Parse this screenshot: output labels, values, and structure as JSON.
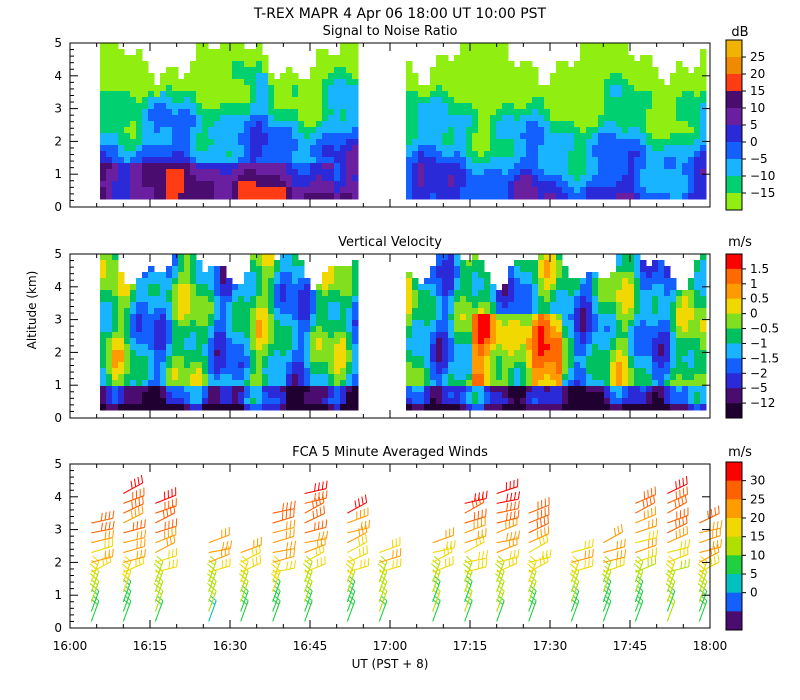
{
  "page_title": "T-REX  MAPR  4 Apr 06  18:00 UT  10:00  PST",
  "x_axis": {
    "ticks": [
      "16:00",
      "16:15",
      "16:30",
      "16:45",
      "17:00",
      "17:15",
      "17:30",
      "17:45",
      "18:00"
    ],
    "range_minutes": [
      0,
      120
    ],
    "label": "UT  (PST + 8)"
  },
  "chart_data": [
    {
      "type": "heatmap",
      "title": "Signal to Noise Ratio",
      "ylabel": "",
      "ylim": [
        0,
        5
      ],
      "yticks": [
        "0",
        "1",
        "2",
        "3",
        "4",
        "5"
      ],
      "xlim": [
        0,
        120
      ],
      "data_gap_minutes": [
        55,
        62
      ],
      "colorbar": {
        "unit": "dB",
        "labels": [
          "25",
          "20",
          "15",
          "10",
          "5",
          "0",
          "−5",
          "−10",
          "−15"
        ],
        "colors": [
          "#f0b400",
          "#f08a00",
          "#ff3c14",
          "#4a0c6e",
          "#6a1fa0",
          "#2a2ad8",
          "#1460ff",
          "#18b4ff",
          "#00d070",
          "#90ee10"
        ]
      }
    },
    {
      "type": "heatmap",
      "title": "Vertical Velocity",
      "ylabel": "Altitude (km)",
      "ylim": [
        0,
        5
      ],
      "yticks": [
        "0",
        "1",
        "2",
        "3",
        "4",
        "5"
      ],
      "xlim": [
        0,
        120
      ],
      "data_gap_minutes": [
        55,
        62
      ],
      "colorbar": {
        "unit": "m/s",
        "labels": [
          "1.5",
          "1",
          "0.5",
          "0",
          "−0.5",
          "−1",
          "−1.5",
          "−2",
          "−5",
          "−12"
        ],
        "colors": [
          "#ff0000",
          "#ff6a00",
          "#ff9a00",
          "#f0d800",
          "#80e020",
          "#00c060",
          "#18b4ff",
          "#1460ff",
          "#2a2ad8",
          "#4a0c6e",
          "#200030"
        ]
      }
    },
    {
      "type": "scatter",
      "title": "FCA 5 Minute Averaged Winds",
      "ylabel": "",
      "ylim": [
        0,
        5
      ],
      "yticks": [
        "0",
        "1",
        "2",
        "3",
        "4",
        "5"
      ],
      "xlim": [
        0,
        120
      ],
      "profile_times_minutes": [
        4,
        10,
        16,
        26,
        32,
        38,
        44,
        52,
        58,
        68,
        74,
        80,
        86,
        94,
        100,
        106,
        112,
        118
      ],
      "levels_km": [
        0.2,
        0.5,
        0.8,
        1.1,
        1.4,
        1.7,
        2.0,
        2.3,
        2.6,
        2.9,
        3.2,
        3.5,
        3.8,
        4.1,
        4.4
      ],
      "colorbar": {
        "unit": "m/s",
        "labels": [
          "30",
          "25",
          "20",
          "15",
          "10",
          "5",
          "0"
        ],
        "colors": [
          "#ff0000",
          "#ff6000",
          "#ff9c00",
          "#f0d800",
          "#b0e000",
          "#20d040",
          "#00c0c0",
          "#1460ff",
          "#4a0c6e"
        ]
      }
    }
  ]
}
